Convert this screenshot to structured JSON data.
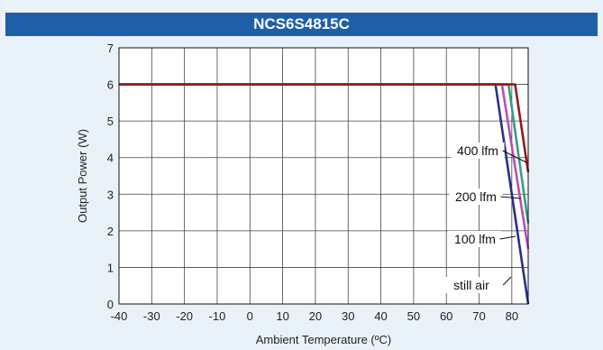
{
  "chart_data": {
    "type": "line",
    "title": "NCS6S4815C",
    "xlabel": "Ambient Temperature (ºC)",
    "ylabel": "Output Power (W)",
    "xlim": [
      -40,
      85
    ],
    "ylim": [
      0,
      7
    ],
    "xticks": [
      -40,
      -30,
      -20,
      -10,
      0,
      10,
      20,
      30,
      40,
      50,
      60,
      70,
      80
    ],
    "yticks": [
      0,
      1,
      2,
      3,
      4,
      5,
      6,
      7
    ],
    "grid": true,
    "series": [
      {
        "name": "still air",
        "color": "#2c2f86",
        "x": [
          -40,
          75,
          85
        ],
        "y": [
          6,
          6,
          0
        ]
      },
      {
        "name": "100 lfm",
        "color": "#b94fb0",
        "x": [
          -40,
          77,
          85
        ],
        "y": [
          6,
          6,
          1.5
        ]
      },
      {
        "name": "200 lfm",
        "color": "#3a9b84",
        "x": [
          -40,
          79,
          85
        ],
        "y": [
          6,
          6,
          2.2
        ]
      },
      {
        "name": "400 lfm",
        "color": "#8a1f1f",
        "x": [
          -40,
          81,
          85
        ],
        "y": [
          6,
          6,
          3.6
        ]
      }
    ],
    "annotations": [
      {
        "text": "400 lfm",
        "target": "400 lfm"
      },
      {
        "text": "200 lfm",
        "target": "200 lfm"
      },
      {
        "text": "100 lfm",
        "target": "100 lfm"
      },
      {
        "text": "still air",
        "target": "still air"
      }
    ]
  }
}
